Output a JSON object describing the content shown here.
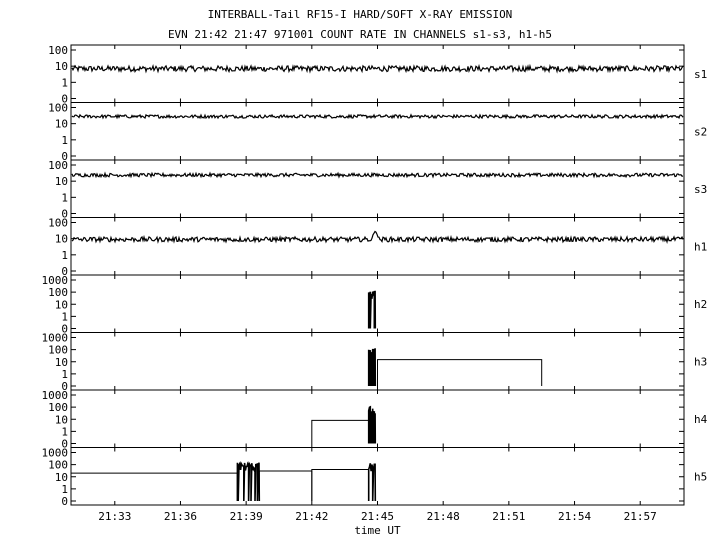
{
  "header": {
    "title": "INTERBALL-Tail RF15-I HARD/SOFT X-RAY EMISSION",
    "subtitle": "EVN 21:42 21:47 971001  COUNT RATE IN CHANNELS s1-s3, h1-h5"
  },
  "chart_data": {
    "type": "line",
    "xlabel": "time UT",
    "x_ticks": [
      "21:33",
      "21:36",
      "21:39",
      "21:42",
      "21:45",
      "21:48",
      "21:51",
      "21:54",
      "21:57"
    ],
    "xlim": [
      "21:31",
      "21:59"
    ],
    "y_scale": "log",
    "grid": false,
    "panels": [
      {
        "name": "s1",
        "y_ticks": [
          "0",
          "1",
          "10",
          "100"
        ],
        "y_top": "100",
        "baseline": 7,
        "noise": 0.35,
        "spikes": [],
        "steps": [],
        "bursts": []
      },
      {
        "name": "s2",
        "y_ticks": [
          "0",
          "1",
          "10",
          "100"
        ],
        "y_top": "100",
        "baseline": 28,
        "noise": 0.2,
        "spikes": [],
        "steps": [],
        "bursts": []
      },
      {
        "name": "s3",
        "y_ticks": [
          "0",
          "1",
          "10",
          "100"
        ],
        "y_top": "100",
        "baseline": 24,
        "noise": 0.22,
        "spikes": [],
        "steps": [],
        "bursts": []
      },
      {
        "name": "h1",
        "y_ticks": [
          "0",
          "1",
          "10",
          "100"
        ],
        "y_top": "100",
        "baseline": 9,
        "noise": 0.3,
        "spikes": [
          {
            "time": "21:44:54",
            "value": 30
          }
        ],
        "steps": [],
        "bursts": []
      },
      {
        "name": "h2",
        "y_ticks": [
          "0",
          "1",
          "10",
          "100",
          "1000"
        ],
        "y_top": "1000",
        "baseline": 0,
        "noise": 0,
        "spikes": [],
        "steps": [],
        "bursts": [
          {
            "start": "21:44:36",
            "end": "21:44:54",
            "value": 60
          }
        ]
      },
      {
        "name": "h3",
        "y_ticks": [
          "0",
          "1",
          "10",
          "100",
          "1000"
        ],
        "y_top": "1000",
        "baseline": 0,
        "noise": 0,
        "spikes": [],
        "steps": [
          {
            "start": "21:45:00",
            "end": "21:52:30",
            "value": 15
          }
        ],
        "bursts": [
          {
            "start": "21:44:36",
            "end": "21:44:54",
            "value": 60
          }
        ]
      },
      {
        "name": "h4",
        "y_ticks": [
          "0",
          "1",
          "10",
          "100",
          "1000"
        ],
        "y_top": "1000",
        "baseline": 0,
        "noise": 0,
        "spikes": [],
        "steps": [
          {
            "start": "21:42:00",
            "end": "21:44:36",
            "value": 8
          }
        ],
        "bursts": [
          {
            "start": "21:44:36",
            "end": "21:44:54",
            "value": 60
          }
        ]
      },
      {
        "name": "h5",
        "y_ticks": [
          "0",
          "1",
          "10",
          "100",
          "1000"
        ],
        "y_top": "1000",
        "baseline": 0,
        "noise": 0,
        "spikes": [],
        "steps": [
          {
            "start": "21:31:00",
            "end": "21:38:36",
            "value": 20
          },
          {
            "start": "21:39:36",
            "end": "21:42:00",
            "value": 30
          },
          {
            "start": "21:42:00",
            "end": "21:44:36",
            "value": 40
          }
        ],
        "bursts": [
          {
            "start": "21:38:36",
            "end": "21:39:36",
            "value": 70
          },
          {
            "start": "21:44:36",
            "end": "21:44:54",
            "value": 60
          }
        ]
      }
    ]
  }
}
